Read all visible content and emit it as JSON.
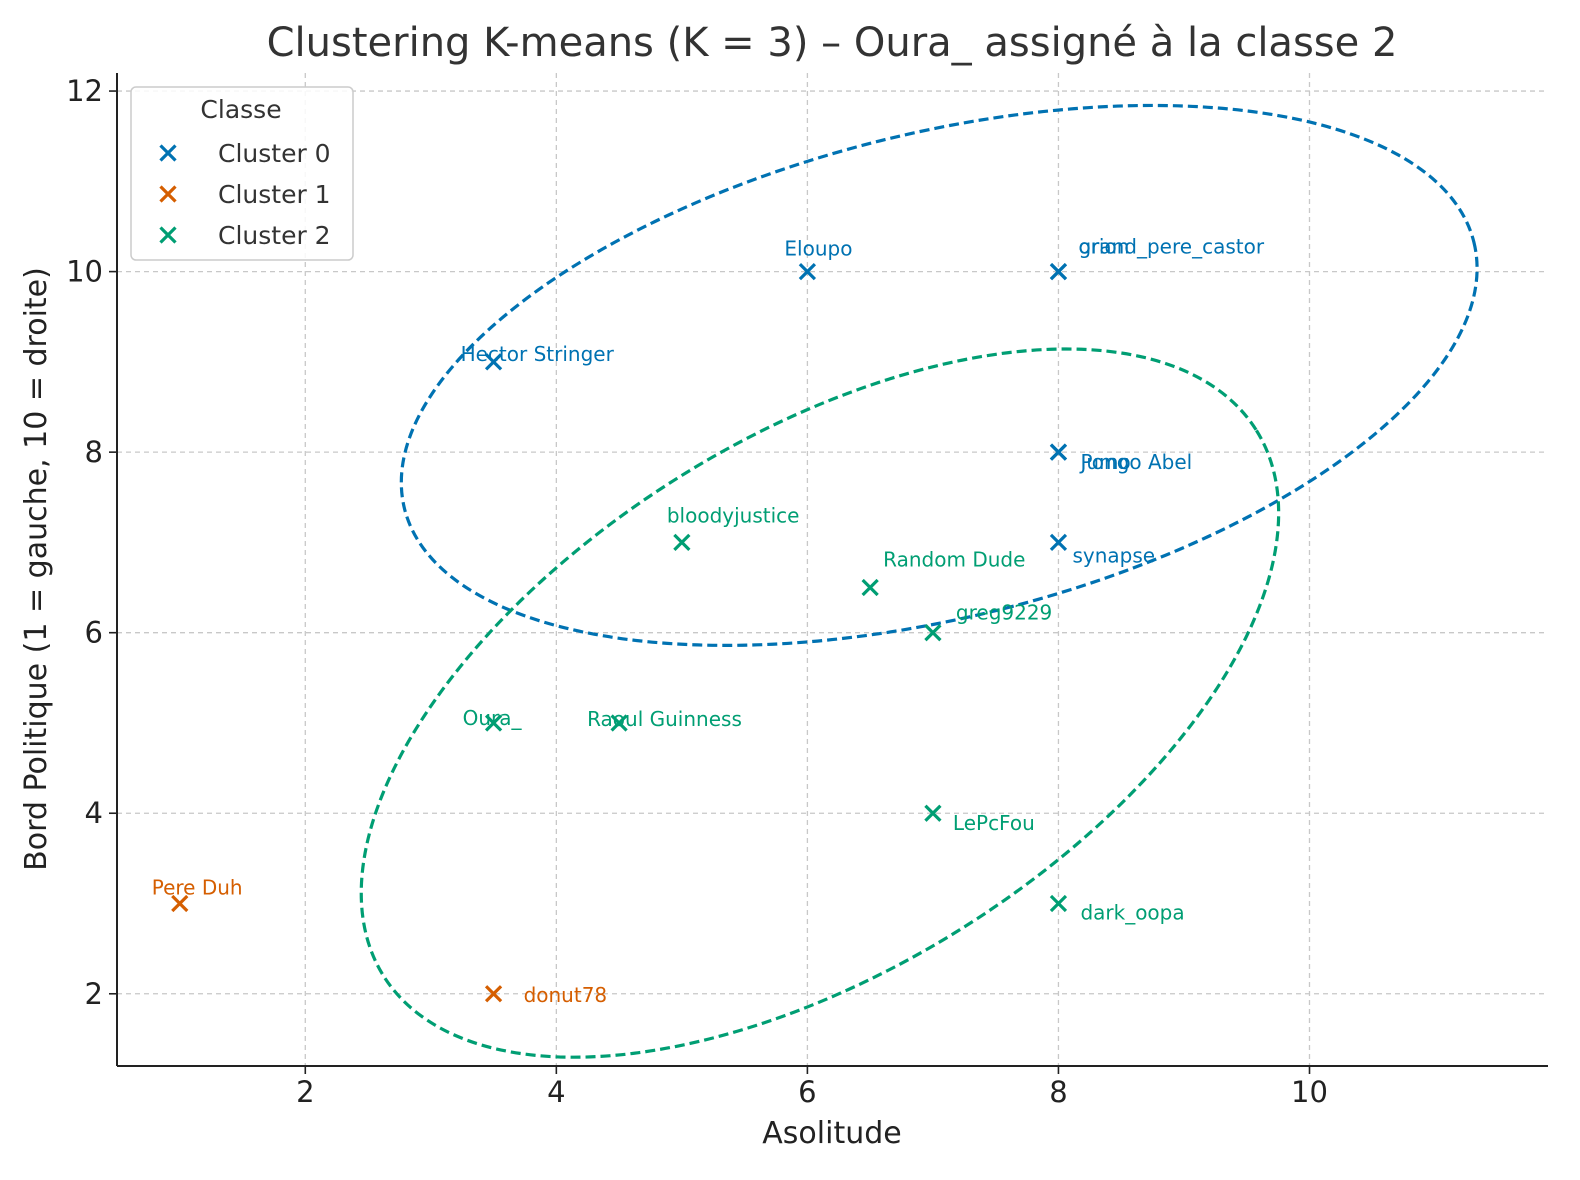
{
  "chart_data": {
    "type": "scatter",
    "title": "Clustering K-means (K = 3) – Oura_ assigné à la classe 2",
    "xlabel": "Asolitude",
    "ylabel": "Bord Politique (1 = gauche, 10 = droite)",
    "xlim": [
      0.5,
      11.9
    ],
    "ylim": [
      1.2,
      12.2
    ],
    "xticks": [
      2,
      4,
      6,
      8,
      10
    ],
    "yticks": [
      2,
      4,
      6,
      8,
      10,
      12
    ],
    "grid": true,
    "legend": {
      "title": "Classe",
      "position": "top-left"
    },
    "series": [
      {
        "name": "Cluster 0",
        "color": "#0072b2",
        "points": [
          {
            "label": "Eloupo",
            "x": 6,
            "y": 10
          },
          {
            "label": "grand_pere_castor",
            "x": 8,
            "y": 10
          },
          {
            "label": "orion",
            "x": 8,
            "y": 10
          },
          {
            "label": "Hector Stringer",
            "x": 3.5,
            "y": 9
          },
          {
            "label": "Jumo",
            "x": 8,
            "y": 8
          },
          {
            "label": "Pongo Abel",
            "x": 8,
            "y": 8
          },
          {
            "label": "synapse",
            "x": 8,
            "y": 7
          }
        ]
      },
      {
        "name": "Cluster 1",
        "color": "#d55e00",
        "points": [
          {
            "label": "Pere Duh",
            "x": 1,
            "y": 3
          },
          {
            "label": "donut78",
            "x": 3.5,
            "y": 2
          }
        ]
      },
      {
        "name": "Cluster 2",
        "color": "#009e73",
        "points": [
          {
            "label": "bloodyjustice",
            "x": 5,
            "y": 7
          },
          {
            "label": "Random Dude",
            "x": 6.5,
            "y": 6.5
          },
          {
            "label": "greg9229",
            "x": 7,
            "y": 6
          },
          {
            "label": "Oura_",
            "x": 3.5,
            "y": 5
          },
          {
            "label": "Raoul Guinness",
            "x": 4.5,
            "y": 5
          },
          {
            "label": "LePcFou",
            "x": 7,
            "y": 4
          },
          {
            "label": "dark_oopa",
            "x": 8,
            "y": 3
          }
        ]
      }
    ],
    "ellipses": [
      {
        "cluster": "Cluster 0",
        "color": "#0072b2",
        "cx": 7.05,
        "cy": 8.85,
        "rx": 4.39,
        "ry": 2.68,
        "angle_deg": -14
      },
      {
        "cluster": "Cluster 2",
        "color": "#009e73",
        "cx": 6.1,
        "cy": 5.22,
        "rx": 4.1,
        "ry": 2.95,
        "angle_deg": -32
      }
    ]
  }
}
